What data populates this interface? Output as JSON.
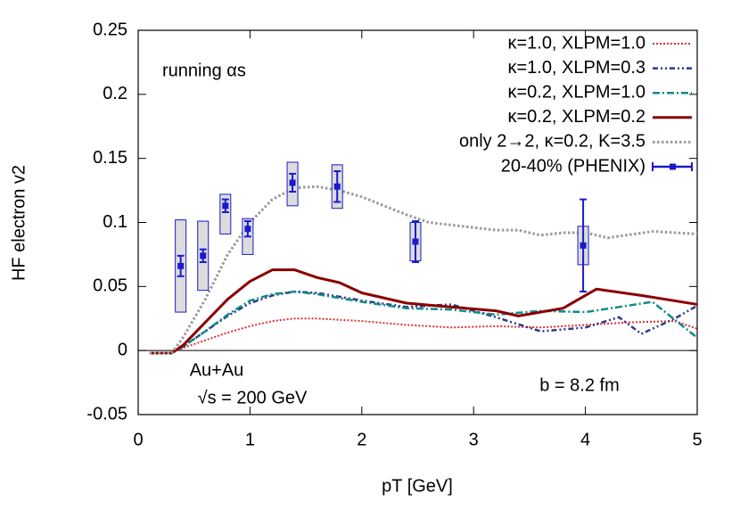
{
  "chart_data": {
    "type": "line",
    "x_label": "pT [GeV]",
    "y_label": "HF electron v2",
    "annotations": [
      "running αs",
      "Au+Au",
      "√s = 200 GeV",
      "b = 8.2 fm"
    ],
    "xlim": [
      0,
      5
    ],
    "xticks": [
      0,
      1,
      2,
      3,
      4,
      5
    ],
    "ylim": [
      -0.05,
      0.25
    ],
    "yticks": [
      -0.05,
      0,
      0.05,
      0.1,
      0.15,
      0.2,
      0.25
    ],
    "legend": "upper right",
    "series": [
      {
        "name": "κ=1.0, XLPM=1.0",
        "color": "#e03030",
        "x": [
          0.1,
          0.3,
          0.4,
          0.6,
          0.8,
          1.0,
          1.2,
          1.4,
          1.6,
          2.0,
          2.4,
          2.8,
          3.2,
          3.6,
          4.0,
          4.4,
          4.8,
          5.0
        ],
        "values": [
          -0.002,
          -0.002,
          0.002,
          0.008,
          0.014,
          0.019,
          0.023,
          0.025,
          0.025,
          0.023,
          0.02,
          0.018,
          0.019,
          0.018,
          0.02,
          0.022,
          0.023,
          0.017
        ]
      },
      {
        "name": "κ=1.0, XLPM=0.3",
        "color": "#2a3a8a",
        "x": [
          0.1,
          0.3,
          0.4,
          0.6,
          0.8,
          1.0,
          1.2,
          1.4,
          1.6,
          2.0,
          2.4,
          2.8,
          3.2,
          3.6,
          4.0,
          4.3,
          4.5,
          4.8,
          5.0
        ],
        "values": [
          -0.002,
          -0.002,
          0.003,
          0.015,
          0.027,
          0.037,
          0.043,
          0.046,
          0.045,
          0.039,
          0.034,
          0.036,
          0.026,
          0.015,
          0.018,
          0.026,
          0.013,
          0.025,
          0.035
        ]
      },
      {
        "name": "κ=0.2, XLPM=1.0",
        "color": "#138a8a",
        "x": [
          0.1,
          0.3,
          0.4,
          0.6,
          0.8,
          1.0,
          1.2,
          1.4,
          1.6,
          2.0,
          2.4,
          2.8,
          3.2,
          3.6,
          4.0,
          4.3,
          4.6,
          5.0
        ],
        "values": [
          -0.002,
          -0.002,
          0.003,
          0.015,
          0.028,
          0.039,
          0.044,
          0.046,
          0.044,
          0.038,
          0.033,
          0.032,
          0.028,
          0.031,
          0.03,
          0.034,
          0.038,
          0.01
        ]
      },
      {
        "name": "κ=0.2, XLPM=0.2",
        "color": "#8b0000",
        "x": [
          0.1,
          0.3,
          0.4,
          0.6,
          0.8,
          1.0,
          1.2,
          1.4,
          1.6,
          1.8,
          2.0,
          2.4,
          2.8,
          3.2,
          3.4,
          3.8,
          4.1,
          4.5,
          5.0
        ],
        "values": [
          -0.002,
          -0.002,
          0.004,
          0.022,
          0.04,
          0.054,
          0.063,
          0.063,
          0.057,
          0.053,
          0.045,
          0.037,
          0.034,
          0.031,
          0.027,
          0.033,
          0.048,
          0.043,
          0.036
        ]
      },
      {
        "name": "only 2→2, κ=0.2, K=3.5",
        "color": "#999999",
        "x": [
          0.1,
          0.3,
          0.4,
          0.6,
          0.8,
          1.0,
          1.2,
          1.4,
          1.6,
          1.8,
          2.0,
          2.2,
          2.4,
          2.6,
          2.8,
          3.0,
          3.2,
          3.4,
          3.6,
          3.8,
          4.0,
          4.2,
          4.6,
          5.0
        ],
        "values": [
          -0.002,
          -0.002,
          0.01,
          0.04,
          0.075,
          0.1,
          0.118,
          0.127,
          0.128,
          0.125,
          0.12,
          0.113,
          0.106,
          0.1,
          0.098,
          0.096,
          0.094,
          0.094,
          0.09,
          0.092,
          0.092,
          0.088,
          0.093,
          0.091
        ]
      },
      {
        "name": "20-40% (PHENIX)",
        "color": "#1a1acc",
        "x": [
          0.38,
          0.58,
          0.78,
          0.98,
          1.38,
          1.78,
          2.48,
          3.98
        ],
        "values": [
          0.066,
          0.074,
          0.113,
          0.095,
          0.131,
          0.128,
          0.085,
          0.082
        ],
        "errors": [
          0.008,
          0.005,
          0.005,
          0.006,
          0.007,
          0.012,
          0.016,
          0.036
        ],
        "sys_low": [
          0.03,
          0.047,
          0.091,
          0.075,
          0.113,
          0.111,
          0.07,
          0.067
        ],
        "sys_high": [
          0.102,
          0.101,
          0.122,
          0.103,
          0.147,
          0.145,
          0.1,
          0.097
        ]
      }
    ]
  }
}
